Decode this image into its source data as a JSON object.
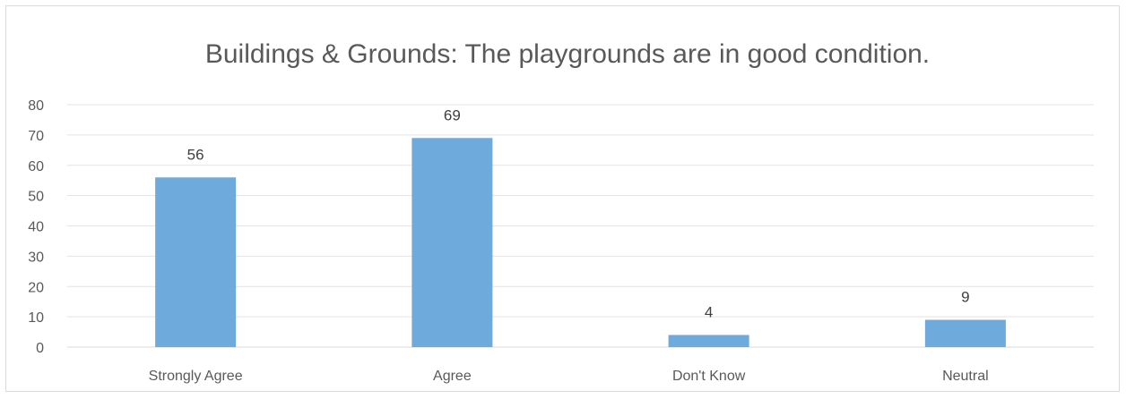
{
  "chart_data": {
    "type": "bar",
    "title": "Buildings & Grounds: The playgrounds are in good condition.",
    "categories": [
      "Strongly Agree",
      "Agree",
      "Don't Know",
      "Neutral"
    ],
    "values": [
      56,
      69,
      4,
      9
    ],
    "data_labels": [
      "56",
      "69",
      "4",
      "9"
    ],
    "yticks": [
      "0",
      "10",
      "20",
      "30",
      "40",
      "50",
      "60",
      "70",
      "80"
    ],
    "ylim": [
      0,
      80
    ],
    "grid": true,
    "legend": "none",
    "bar_color": "#6eaadc"
  }
}
